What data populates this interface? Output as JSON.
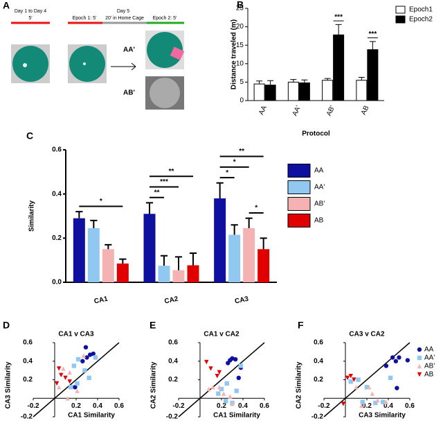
{
  "panel_a": {
    "label": "A",
    "day14": "Day 1 to Day 4",
    "day14_duration": "5'",
    "day5": "Day 5",
    "epoch1": "Epoch 1: 5'",
    "home_cage": "20' in Home Cage",
    "epoch2": "Epoch 2: 5'",
    "aa_prime": "AA'",
    "ab_prime": "AB'"
  },
  "chart_data": [
    {
      "type": "bar",
      "panel_label": "B",
      "ylabel": "Distance traveled (m)",
      "xlabel": "Protocol",
      "categories": [
        "AA",
        "AA'",
        "AB'",
        "AB"
      ],
      "series": [
        {
          "name": "Epoch1",
          "color": "#ffffff",
          "values": [
            4.5,
            5.0,
            5.5,
            5.5
          ],
          "errors": [
            0.8,
            0.7,
            0.5,
            0.8
          ]
        },
        {
          "name": "Epoch2",
          "color": "#000000",
          "values": [
            4.2,
            4.8,
            17.8,
            13.8
          ],
          "errors": [
            1.2,
            0.8,
            2.8,
            2.2
          ]
        }
      ],
      "ylim": [
        0,
        25
      ],
      "yticks": [
        0,
        5,
        10,
        15,
        20,
        25
      ],
      "legend": "top-right",
      "annotations": [
        {
          "text": "***",
          "category": "AB'"
        },
        {
          "text": "***",
          "category": "AB"
        }
      ]
    },
    {
      "type": "bar",
      "panel_label": "C",
      "ylabel": "Similarity",
      "categories": [
        "CA1",
        "CA2",
        "CA3"
      ],
      "series": [
        {
          "name": "AA",
          "color": "#1010a0",
          "values": [
            0.29,
            0.31,
            0.38
          ],
          "errors": [
            0.03,
            0.05,
            0.07
          ]
        },
        {
          "name": "AA'",
          "color": "#90c8f2",
          "values": [
            0.245,
            0.075,
            0.215
          ],
          "errors": [
            0.035,
            0.045,
            0.045
          ]
        },
        {
          "name": "AB'",
          "color": "#f4b2b2",
          "values": [
            0.15,
            0.055,
            0.245
          ],
          "errors": [
            0.02,
            0.06,
            0.045
          ]
        },
        {
          "name": "AB",
          "color": "#e00000",
          "values": [
            0.085,
            0.077,
            0.15
          ],
          "errors": [
            0.02,
            0.055,
            0.05
          ]
        }
      ],
      "ylim": [
        0,
        0.6
      ],
      "yticks": [
        {
          "value": 0,
          "label": "0.0"
        },
        0.2,
        0.4,
        0.6
      ],
      "legend": "right",
      "annotations": [
        {
          "text": "*",
          "category": "CA1",
          "between": [
            "AA",
            "AB"
          ]
        },
        {
          "text": "**",
          "category": "CA2",
          "between": [
            "AA",
            "AA'"
          ]
        },
        {
          "text": "***",
          "category": "CA2",
          "between": [
            "AA",
            "AB'"
          ]
        },
        {
          "text": "**",
          "category": "CA2",
          "between": [
            "AA",
            "AB"
          ]
        },
        {
          "text": "*",
          "category": "CA3",
          "between": [
            "AB'",
            "AB"
          ]
        },
        {
          "text": "*",
          "category": "CA3",
          "between": [
            "AA",
            "AA'"
          ]
        },
        {
          "text": "*",
          "category": "CA3",
          "between": [
            "AA",
            "AB'"
          ]
        },
        {
          "text": "**",
          "category": "CA3",
          "between": [
            "AA",
            "AB"
          ]
        }
      ]
    },
    {
      "type": "scatter",
      "panel_label": "D",
      "title": "CA1 v CA3",
      "xlabel": "CA1 Similarity",
      "ylabel": "CA3 Similarity",
      "xlim": [
        -0.2,
        0.6
      ],
      "ylim": [
        -0.2,
        0.6
      ],
      "xticks": [
        -0.2,
        0.2,
        0.4,
        0.6
      ],
      "yticks": [
        -0.2,
        0.2,
        0.4,
        0.6
      ],
      "diagonal": true,
      "legend": false,
      "series": [
        {
          "color": "#1010a0",
          "marker": "circle",
          "x": [
            0.29,
            0.33,
            0.36,
            0.3,
            0.26,
            0.19
          ],
          "y": [
            0.55,
            0.47,
            0.48,
            0.44,
            0.4,
            0.12
          ]
        },
        {
          "color": "#90c8f2",
          "marker": "square",
          "x": [
            0.22,
            0.18,
            0.32,
            0.38,
            0.28,
            0.21,
            0.15
          ],
          "y": [
            0.42,
            0.35,
            0.22,
            0.44,
            0.3,
            0.16,
            0.12
          ]
        },
        {
          "color": "#f4b2b2",
          "marker": "triangle-up",
          "x": [
            0.08,
            0.14,
            0.27,
            0.04,
            0.21,
            0.12
          ],
          "y": [
            0.32,
            0.28,
            0.46,
            0.12,
            0.08,
            0.0
          ]
        },
        {
          "color": "#e00000",
          "marker": "triangle-down",
          "x": [
            0.04,
            0.1,
            0.14,
            0.06,
            0.02
          ],
          "y": [
            0.32,
            0.22,
            0.18,
            0.25,
            0.16
          ]
        }
      ]
    },
    {
      "type": "scatter",
      "panel_label": "E",
      "title": "CA1 v CA2",
      "xlabel": "CA1 Similarity",
      "ylabel": "CA2 Similarity",
      "xlim": [
        -0.2,
        0.6
      ],
      "ylim": [
        -0.2,
        0.6
      ],
      "xticks": [
        -0.2,
        0.2,
        0.4,
        0.6
      ],
      "yticks": [
        -0.2,
        0.2,
        0.4,
        0.6
      ],
      "diagonal": true,
      "legend": false,
      "series": [
        {
          "color": "#1010a0",
          "marker": "circle",
          "x": [
            0.28,
            0.3,
            0.33,
            0.26,
            0.38,
            0.36
          ],
          "y": [
            0.41,
            0.43,
            0.42,
            0.38,
            0.33,
            0.22
          ]
        },
        {
          "color": "#90c8f2",
          "marker": "square",
          "x": [
            0.2,
            0.25,
            0.38,
            0.34,
            0.24,
            0.3,
            0.17
          ],
          "y": [
            0.1,
            0.16,
            0.35,
            0.08,
            -0.03,
            -0.05,
            0.05
          ]
        },
        {
          "color": "#f4b2b2",
          "marker": "triangle-up",
          "x": [
            0.08,
            0.18,
            0.22,
            0.3,
            0.12,
            0.28
          ],
          "y": [
            0.1,
            0.12,
            0.05,
            -0.06,
            0.12,
            0.02
          ]
        },
        {
          "color": "#e00000",
          "marker": "triangle-down",
          "x": [
            0.06,
            0.1,
            0.16,
            0.18
          ],
          "y": [
            0.39,
            0.32,
            0.24,
            0.28
          ]
        }
      ]
    },
    {
      "type": "scatter",
      "panel_label": "F",
      "title": "CA3 v CA2",
      "xlabel": "CA3 Similarity",
      "ylabel": "CA2 Similarity",
      "xlim": [
        -0.2,
        0.6
      ],
      "ylim": [
        -0.2,
        0.6
      ],
      "xticks": [
        -0.2,
        0.2,
        0.4,
        0.6
      ],
      "yticks": [
        -0.2,
        0.2,
        0.4,
        0.6
      ],
      "diagonal": true,
      "legend": "right",
      "series": [
        {
          "name": "AA",
          "color": "#1010a0",
          "marker": "circle",
          "x": [
            0.38,
            0.44,
            0.47,
            0.5,
            0.58,
            0.48
          ],
          "y": [
            0.35,
            0.44,
            0.4,
            0.44,
            0.41,
            0.11
          ]
        },
        {
          "name": "AA'",
          "color": "#90c8f2",
          "marker": "square",
          "x": [
            0.05,
            0.12,
            0.2,
            0.28,
            0.35,
            0.42,
            0.16
          ],
          "y": [
            0.18,
            0.2,
            0.12,
            -0.05,
            -0.04,
            0.22,
            -0.04
          ]
        },
        {
          "name": "AB'",
          "color": "#f4b2b2",
          "marker": "triangle-up",
          "x": [
            0.1,
            0.22,
            0.3,
            0.38,
            0.25,
            0.15
          ],
          "y": [
            0.12,
            0.12,
            -0.02,
            -0.04,
            0.05,
            -0.08
          ]
        },
        {
          "name": "AB",
          "color": "#e00000",
          "marker": "triangle-down",
          "x": [
            0.02,
            0.05,
            0.08,
            -0.02
          ],
          "y": [
            0.22,
            0.24,
            0.2,
            -0.06
          ]
        }
      ]
    }
  ]
}
